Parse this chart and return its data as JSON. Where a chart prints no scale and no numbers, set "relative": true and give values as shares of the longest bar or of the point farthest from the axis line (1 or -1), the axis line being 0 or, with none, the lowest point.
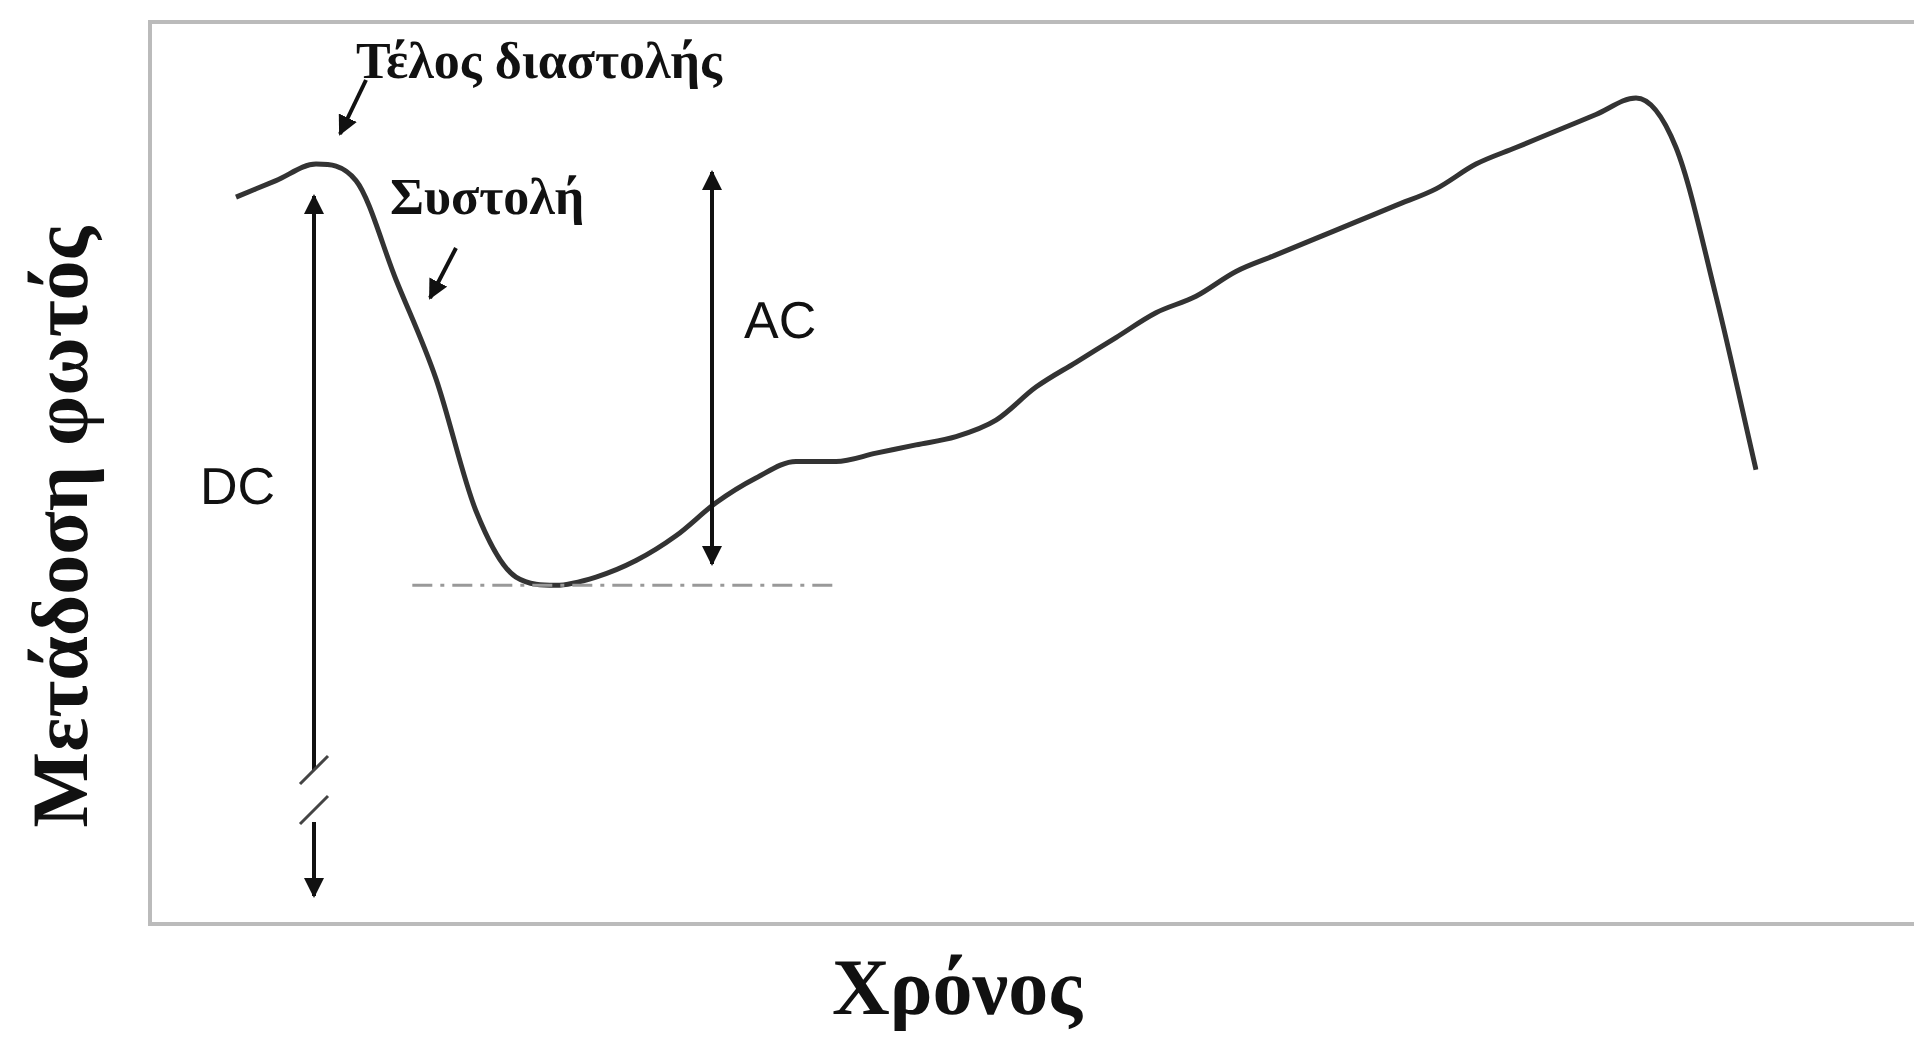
{
  "chart_data": {
    "type": "line",
    "relative": true,
    "xlabel": "Χρόνος",
    "ylabel": "Μετάδοση φωτός",
    "categories": [
      null,
      null,
      null,
      null,
      null,
      null,
      null,
      null,
      null,
      null,
      null,
      null,
      null,
      null,
      null,
      null,
      null,
      null,
      null,
      null,
      null,
      null,
      null,
      null,
      null,
      null,
      null,
      null,
      null,
      null,
      null,
      null,
      null,
      null,
      null,
      null,
      null,
      null,
      null
    ],
    "series": [
      {
        "color": "#333333",
        "values": [
          0.88,
          0.9,
          0.92,
          0.9,
          0.78,
          0.66,
          0.5,
          0.42,
          0.41,
          0.42,
          0.44,
          0.47,
          0.51,
          0.54,
          0.56,
          0.56,
          0.57,
          0.58,
          0.59,
          0.61,
          0.65,
          0.68,
          0.71,
          0.74,
          0.76,
          0.79,
          0.81,
          0.83,
          0.85,
          0.87,
          0.89,
          0.92,
          0.94,
          0.96,
          0.98,
          1.0,
          0.94,
          0.76,
          0.55
        ]
      }
    ],
    "annotations": [
      "Τέλος διαστολής",
      "Συστολή",
      "AC",
      "DC"
    ],
    "ref_lines": [
      {
        "axis": "y",
        "value": 0.41,
        "color": "#999999",
        "line_style": "dashed"
      }
    ],
    "marker": "none",
    "legend": false,
    "tick_labels": false
  }
}
